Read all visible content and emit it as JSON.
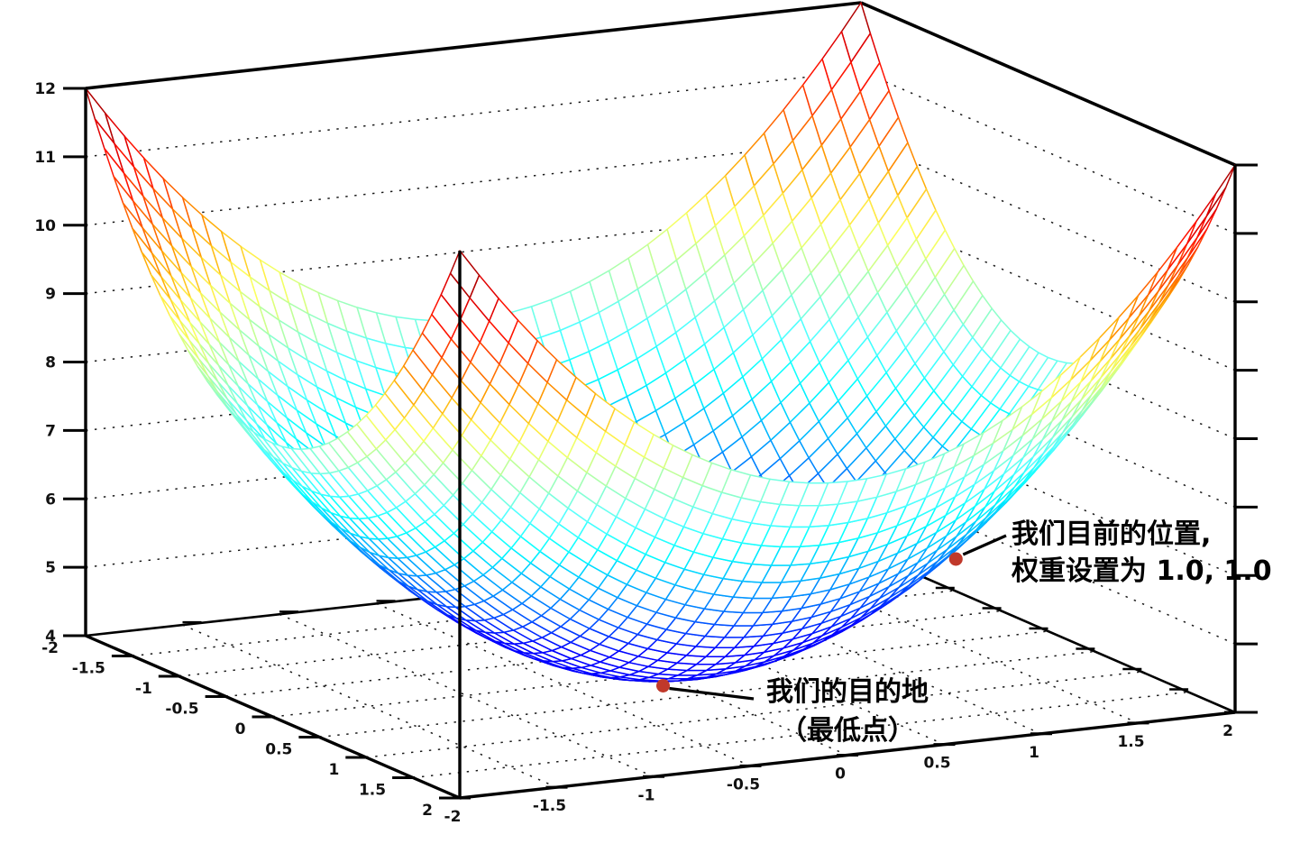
{
  "chart_data": {
    "type": "surface",
    "title": "",
    "z_function": "x^2 + y^2 + 4",
    "x_axis": {
      "range": [
        -2,
        2
      ],
      "tick_step": 0.5,
      "tick_labels": [
        "-2",
        "-1.5",
        "-1",
        "-0.5",
        "0",
        "0.5",
        "1",
        "1.5",
        "2"
      ]
    },
    "y_axis": {
      "range": [
        -2,
        2
      ],
      "tick_step": 0.5,
      "tick_labels": [
        "-2",
        "-1.5",
        "-1",
        "-0.5",
        "0",
        "0.5",
        "1",
        "1.5",
        "2"
      ]
    },
    "z_axis": {
      "range": [
        4,
        12
      ],
      "tick_step": 1,
      "tick_labels": [
        "4",
        "5",
        "6",
        "7",
        "8",
        "9",
        "10",
        "11",
        "12"
      ]
    },
    "wireframe_divisions": 40,
    "colormap": "jet",
    "grid_style": "dotted",
    "background_color": "#ffffff",
    "axis_color": "#000000",
    "marker_color": "#c0392b",
    "markers": [
      {
        "id": "current-position",
        "x": 1.0,
        "y": 1.0,
        "z": 6.0,
        "color": "#c0392b",
        "label_lines": [
          "我们目前的位置,",
          "权重设置为 1.0, 1.0"
        ]
      },
      {
        "id": "destination",
        "x": 0,
        "y": 0,
        "z": 4.0,
        "color": "#c0392b",
        "label_lines": [
          "我们的目的地",
          "（最低点）"
        ]
      }
    ]
  }
}
